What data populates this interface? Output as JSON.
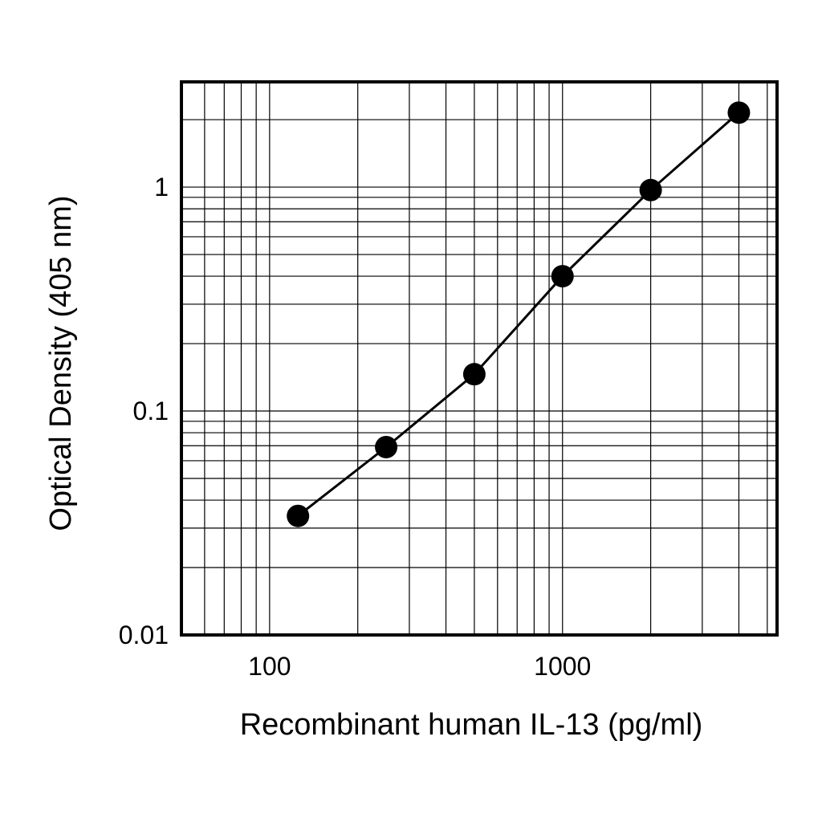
{
  "chart_data": {
    "type": "line",
    "title": "",
    "xlabel": "Recombinant human IL-13 (pg/ml)",
    "ylabel": "Optical Density (405 nm)",
    "x_scale": "log",
    "y_scale": "log",
    "xlim": [
      50,
      5400
    ],
    "ylim": [
      0.01,
      2.95
    ],
    "x_ticks": [
      {
        "value": 100,
        "label": "100"
      },
      {
        "value": 1000,
        "label": "1000"
      }
    ],
    "y_ticks": [
      {
        "value": 0.01,
        "label": "0.01"
      },
      {
        "value": 0.1,
        "label": "0.1"
      },
      {
        "value": 1,
        "label": "1"
      }
    ],
    "grid": true,
    "legend": "none",
    "series": [
      {
        "x": [
          125,
          250,
          500,
          1000,
          2000,
          4000
        ],
        "y": [
          0.034,
          0.069,
          0.146,
          0.4,
          0.97,
          2.15
        ]
      }
    ],
    "colors": {
      "line": "#000000",
      "marker": "#000000",
      "grid": "#000000"
    }
  }
}
